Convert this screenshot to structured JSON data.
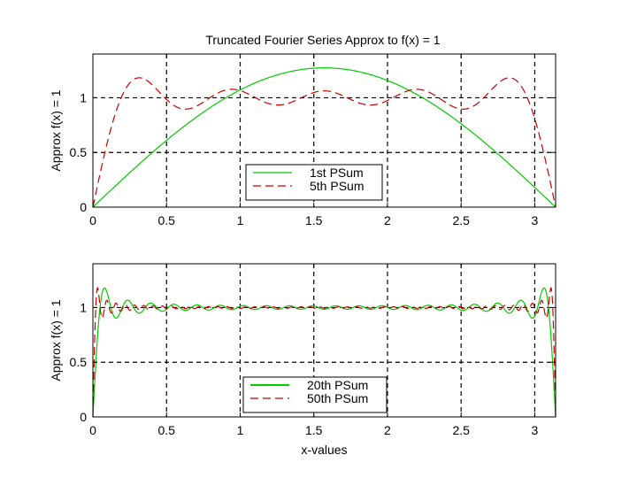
{
  "figure": {
    "title": "Truncated Fourier Series Approx to f(x) = 1"
  },
  "chart_data": [
    {
      "type": "line",
      "title": "Truncated Fourier Series Approx to f(x) = 1",
      "xlabel": "",
      "ylabel": "Approx f(x) = 1",
      "xlim": [
        0,
        3.14159
      ],
      "ylim": [
        0,
        1.4
      ],
      "xticks": [
        0,
        0.5,
        1,
        1.5,
        2,
        2.5,
        3
      ],
      "xtick_labels": [
        "0",
        "0.5",
        "1",
        "1.5",
        "2",
        "2.5",
        "3"
      ],
      "yticks": [
        0,
        0.5,
        1
      ],
      "ytick_labels": [
        "0",
        "0.5",
        "1"
      ],
      "grid": true,
      "legend_position": "bottom-center",
      "series": [
        {
          "name": "1st PSum",
          "terms": 1,
          "color": "#00cc00",
          "dash": "solid"
        },
        {
          "name": "5th PSum",
          "terms": 5,
          "color": "#cc0000",
          "dash": "dashed"
        }
      ]
    },
    {
      "type": "line",
      "title": "",
      "xlabel": "x-values",
      "ylabel": "Approx f(x) = 1",
      "xlim": [
        0,
        3.14159
      ],
      "ylim": [
        0,
        1.4
      ],
      "xticks": [
        0,
        0.5,
        1,
        1.5,
        2,
        2.5,
        3
      ],
      "xtick_labels": [
        "0",
        "0.5",
        "1",
        "1.5",
        "2",
        "2.5",
        "3"
      ],
      "yticks": [
        0,
        0.5,
        1
      ],
      "ytick_labels": [
        "0",
        "0.5",
        "1"
      ],
      "grid": true,
      "legend_position": "bottom-center",
      "series": [
        {
          "name": "20th PSum",
          "terms": 20,
          "color": "#00cc00",
          "dash": "solid"
        },
        {
          "name": "50th PSum",
          "terms": 50,
          "color": "#cc0000",
          "dash": "dashed"
        }
      ]
    }
  ]
}
